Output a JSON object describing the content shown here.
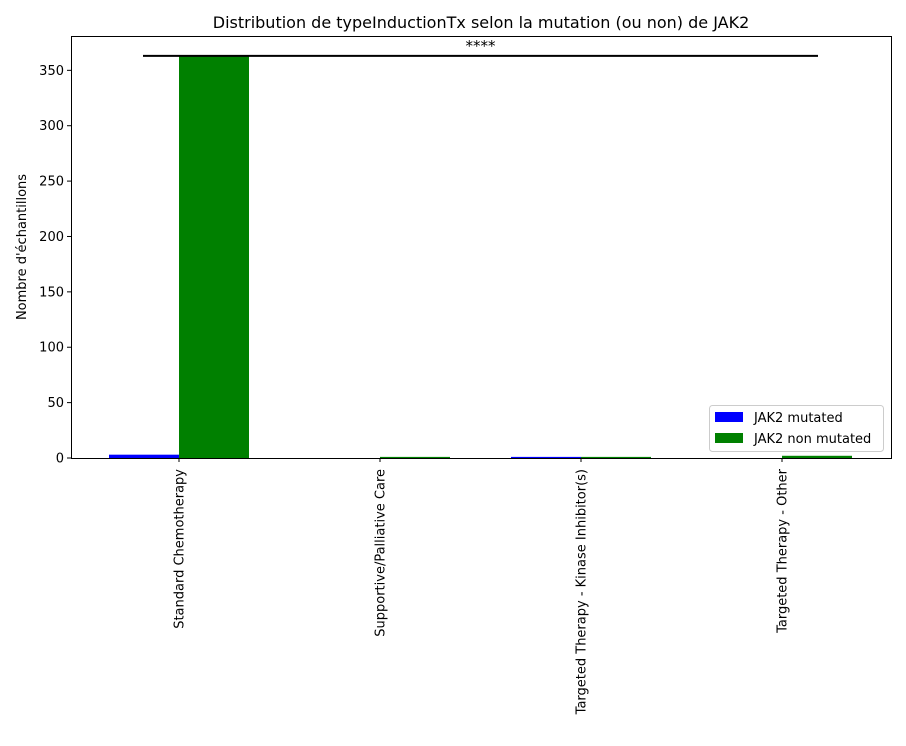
{
  "chart_data": {
    "type": "bar",
    "title": "Distribution de typeInductionTx selon la mutation (ou non) de JAK2",
    "xlabel": "",
    "ylabel": "Nombre d'échantillons",
    "categories": [
      "Standard Chemotherapy",
      "Supportive/Palliative Care",
      "Targeted Therapy - Kinase Inhibitor(s)",
      "Targeted Therapy - Other"
    ],
    "series": [
      {
        "name": "JAK2 mutated",
        "color": "#0000ff",
        "values": [
          3,
          0,
          1,
          0
        ]
      },
      {
        "name": "JAK2 non mutated",
        "color": "#008000",
        "values": [
          363,
          1,
          1,
          2
        ]
      }
    ],
    "ylim": [
      0,
      381
    ],
    "yticks": [
      0,
      50,
      100,
      150,
      200,
      250,
      300,
      350
    ],
    "annotation": {
      "text": "****",
      "y": 363,
      "from_category": 0,
      "to_category": 3
    },
    "legend": {
      "position": "lower right"
    },
    "grid": false
  }
}
